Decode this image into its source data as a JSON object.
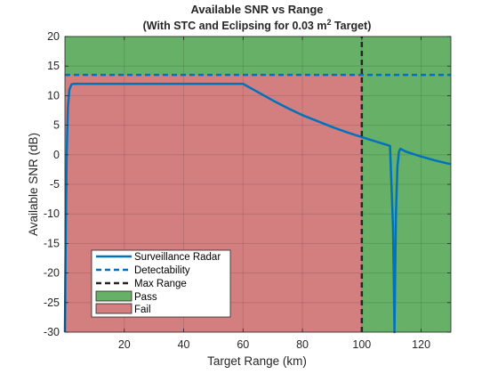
{
  "chart_data": {
    "type": "line",
    "title": "Available SNR vs Range",
    "subtitle_pre": "(With STC and Eclipsing for 0.03 m",
    "subtitle_sup": "2",
    "subtitle_post": " Target)",
    "xlabel": "Target Range (km)",
    "ylabel": "Available SNR (dB)",
    "xlim": [
      0,
      130
    ],
    "ylim": [
      -30,
      20
    ],
    "xticks": [
      20,
      40,
      60,
      80,
      100,
      120
    ],
    "yticks": [
      -30,
      -25,
      -20,
      -15,
      -10,
      -5,
      0,
      5,
      10,
      15,
      20
    ],
    "grid": true,
    "legend_position": "bottom-left",
    "colors": {
      "pass": "#67b067",
      "fail": "#d47f7f",
      "radar": "#0072bd",
      "detectability": "#0072bd",
      "max_range": "#262626"
    },
    "series": [
      {
        "name": "Surveillance Radar",
        "style": "solid",
        "x": [
          0.0,
          0.3,
          0.6,
          1.0,
          1.5,
          2.2,
          3.0,
          10,
          20,
          40,
          60,
          65,
          70,
          75,
          80,
          85,
          90,
          95,
          100,
          105,
          109.5,
          110.5,
          110.8,
          111.0,
          111.2,
          111.5,
          112.0,
          112.5,
          113.0,
          115,
          120,
          125,
          130
        ],
        "y": [
          -30,
          -12,
          0,
          8,
          11,
          11.9,
          12,
          12,
          12,
          12,
          12,
          10.6,
          9.2,
          7.9,
          6.7,
          5.7,
          4.7,
          3.8,
          3.0,
          2.2,
          1.5,
          -12,
          -22,
          -30,
          -22,
          -10,
          -2,
          0.5,
          1.0,
          0.5,
          -0.3,
          -1.0,
          -1.6
        ]
      },
      {
        "name": "Detectability",
        "style": "dashed",
        "x": [
          0,
          130
        ],
        "y": [
          13.5,
          13.5
        ]
      },
      {
        "name": "Max Range",
        "style": "dashed",
        "x": [
          100,
          100
        ],
        "y": [
          -30,
          20
        ]
      }
    ],
    "regions": [
      {
        "name": "Pass"
      },
      {
        "name": "Fail"
      }
    ],
    "fail_region": {
      "x_max": 100,
      "y_max": 13.5
    }
  }
}
